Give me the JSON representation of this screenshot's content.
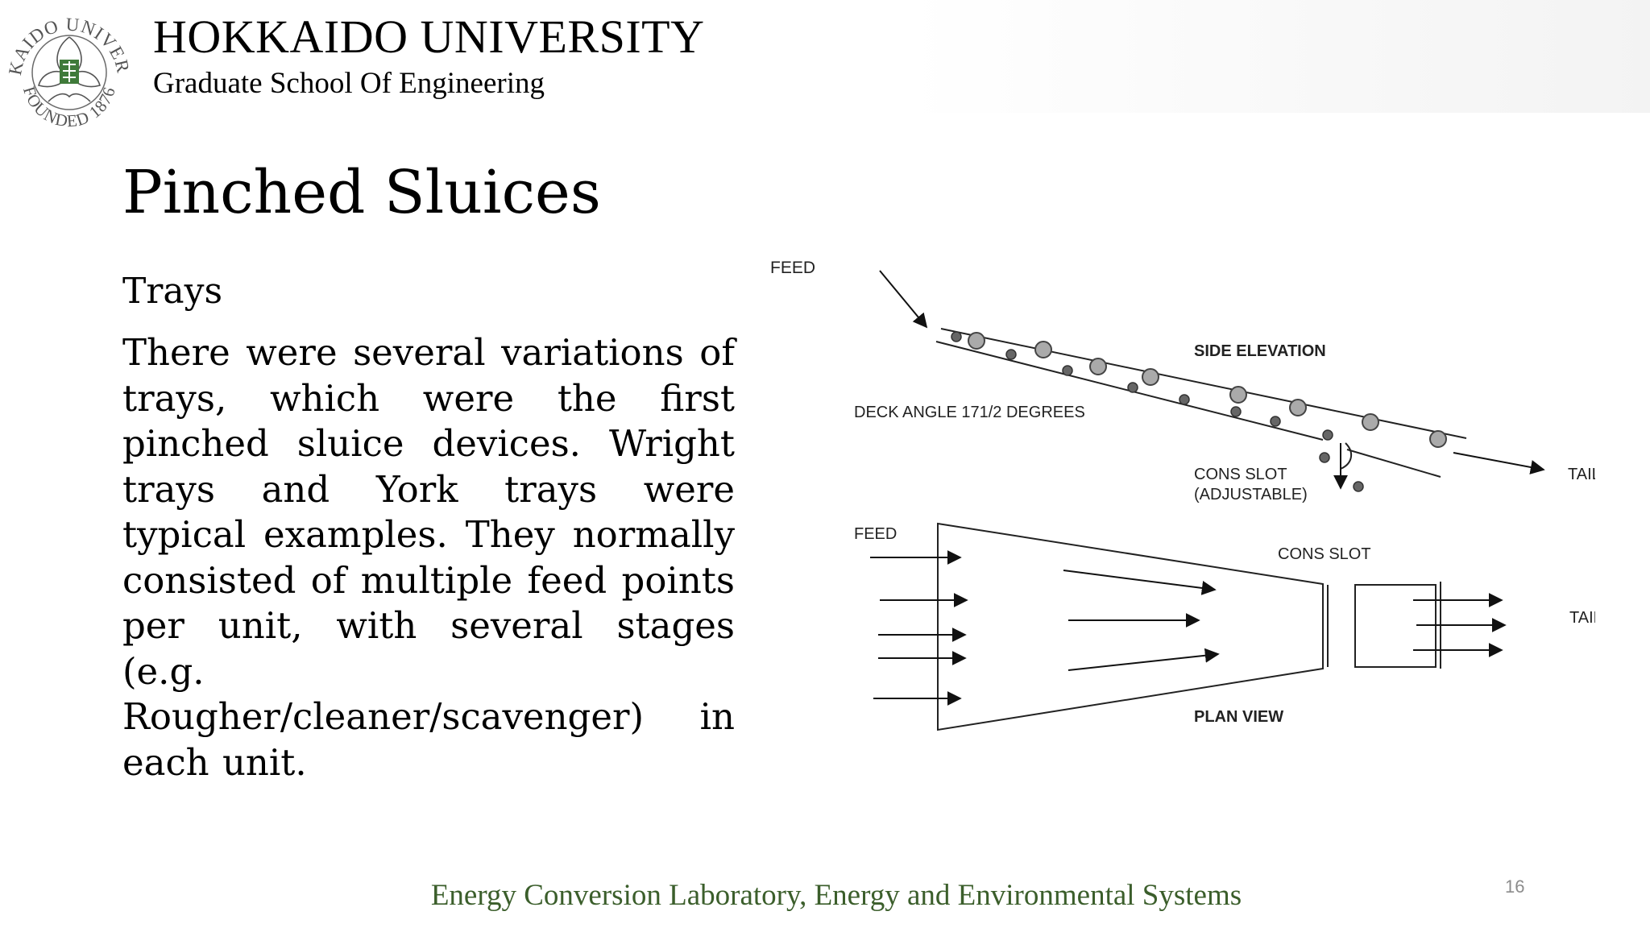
{
  "header": {
    "university": "HOKKAIDO UNIVERSITY",
    "school": "Graduate School Of Engineering",
    "logo": {
      "ring_text_top": "HOKKAIDO UNIVERSITY",
      "ring_text_bottom": "FOUNDED 1876",
      "emblem_color": "#3f7a3a"
    }
  },
  "slide": {
    "title": "Pinched Sluices",
    "heading": "Trays",
    "body": "There were several variations of trays, which were the first pinched sluice devices. Wright trays and York trays were typical examples. They normally consisted of multiple feed points per unit, with several stages (e.g. Rougher/cleaner/scavenger) in each unit."
  },
  "figure": {
    "feed_top": "FEED",
    "side_elevation": "SIDE ELEVATION",
    "deck_angle": "DECK ANGLE 171/2 DEGREES",
    "cons_slot_adjustable_line1": "CONS SLOT",
    "cons_slot_adjustable_line2": "(ADJUSTABLE)",
    "tails_top": "TAILS",
    "feed_plan": "FEED",
    "cons_slot_plan": "CONS SLOT",
    "tails_plan": "TAILS",
    "plan_view": "PLAN VIEW"
  },
  "footer": {
    "lab": "Energy Conversion Laboratory, Energy and Environmental Systems",
    "page_number": "16",
    "footer_color": "#3b5e2b"
  }
}
